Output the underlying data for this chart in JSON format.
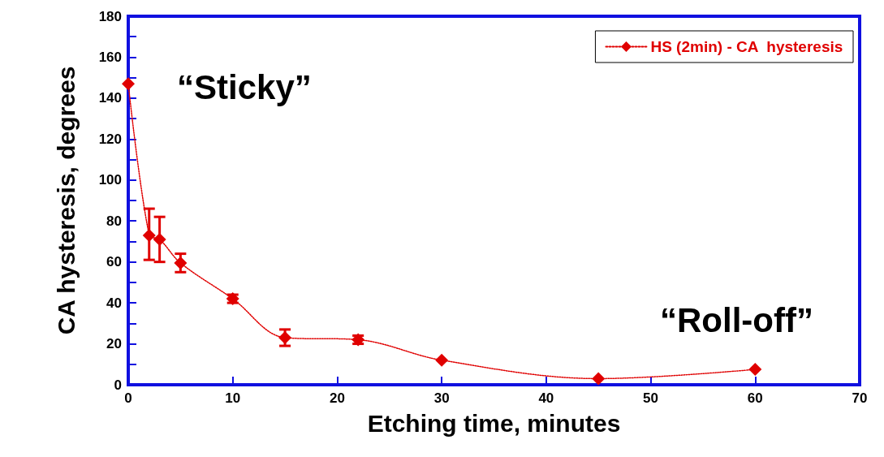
{
  "chart_data": {
    "type": "line",
    "xlabel": "Etching time, minutes",
    "ylabel": "CA hysteresis, degrees",
    "x": [
      0,
      2,
      3,
      5,
      10,
      15,
      22,
      30,
      45,
      60
    ],
    "series": [
      {
        "name": "HS (2min) - CA  hysteresis",
        "color": "#e00000",
        "values": [
          147,
          73,
          71,
          59.5,
          42,
          23,
          22,
          12,
          3,
          7.5
        ],
        "errors": [
          null,
          [
            61,
            86
          ],
          [
            60,
            82
          ],
          [
            55,
            64
          ],
          [
            40,
            44
          ],
          [
            19,
            27
          ],
          [
            20,
            24
          ],
          null,
          null,
          null
        ]
      }
    ],
    "xlim": [
      0,
      70
    ],
    "xticks": [
      0,
      10,
      20,
      30,
      40,
      50,
      60,
      70
    ],
    "ylim": [
      0,
      180
    ],
    "yticks": [
      0,
      {
        "value": 10,
        "label": null
      },
      20,
      {
        "value": 30,
        "label": null
      },
      40,
      {
        "value": 50,
        "label": null
      },
      60,
      {
        "value": 70,
        "label": null
      },
      80,
      {
        "value": 90,
        "label": null
      },
      100,
      {
        "value": 110,
        "label": null
      },
      120,
      {
        "value": 130,
        "label": null
      },
      140,
      {
        "value": 150,
        "label": null
      },
      160,
      {
        "value": 170,
        "label": null
      },
      180
    ],
    "annotations": [
      "“Sticky”",
      "“Roll-off”"
    ],
    "legend": "top right",
    "marker": "diamond",
    "line_style": "dotted",
    "grid": false
  }
}
